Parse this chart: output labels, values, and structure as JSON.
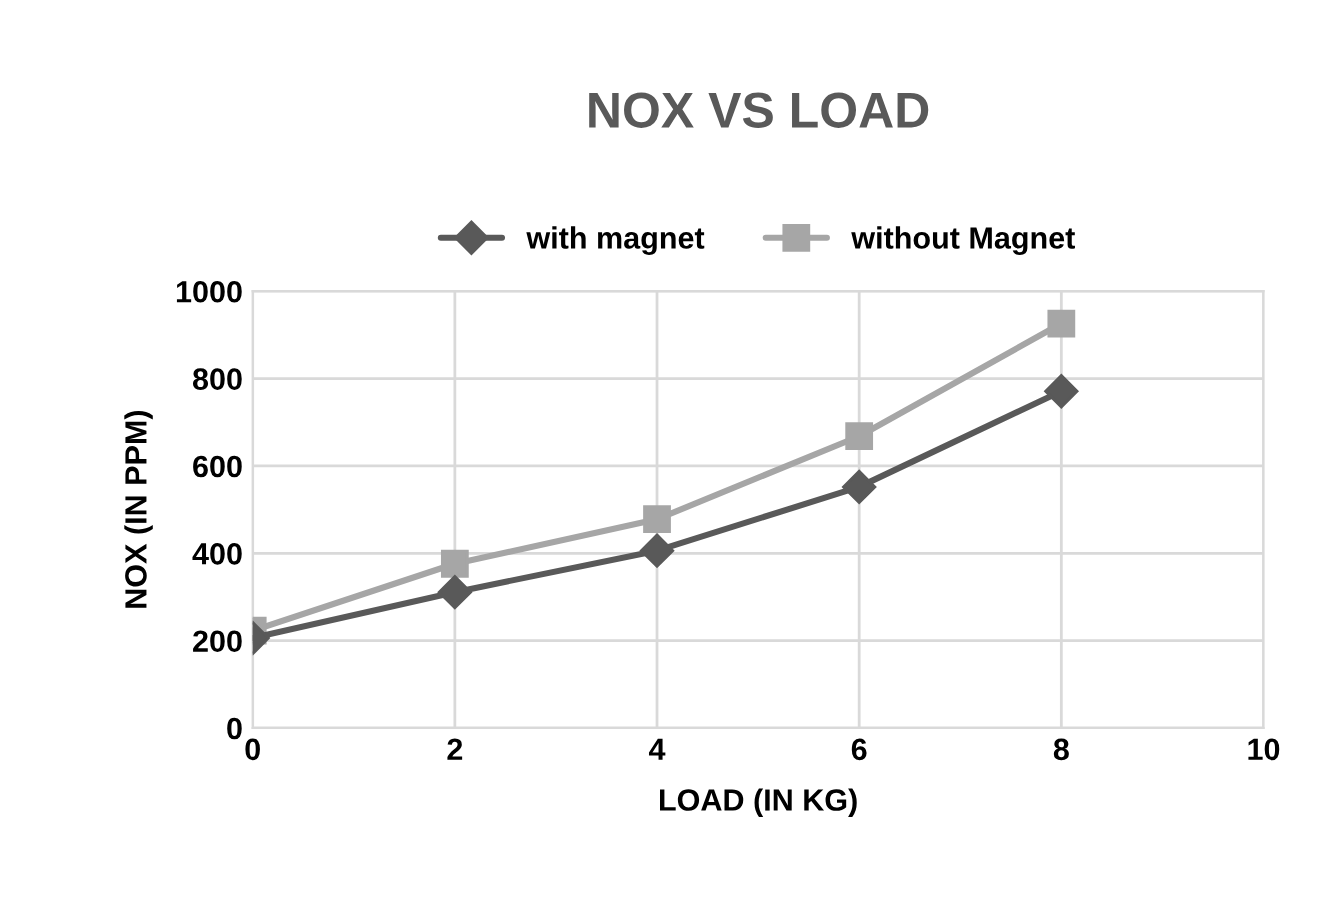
{
  "chart_data": {
    "type": "line",
    "title": "NOX VS LOAD",
    "xlabel": "LOAD (IN KG)",
    "ylabel": "NOX (IN PPM)",
    "x": [
      0,
      2,
      4,
      6,
      8
    ],
    "series": [
      {
        "name": "with magnet",
        "color": "#595959",
        "marker": "diamond",
        "values": [
          206,
          311,
          406,
          552,
          771
        ]
      },
      {
        "name": "without Magnet",
        "color": "#a6a6a6",
        "marker": "square",
        "values": [
          223,
          376,
          478,
          668,
          926
        ]
      }
    ],
    "xlim": [
      0,
      10
    ],
    "xticks": [
      0,
      2,
      4,
      6,
      8,
      10
    ],
    "ylim": [
      0,
      1000
    ],
    "yticks": [
      0,
      200,
      400,
      600,
      800,
      1000
    ],
    "grid": true,
    "legend": "top"
  }
}
